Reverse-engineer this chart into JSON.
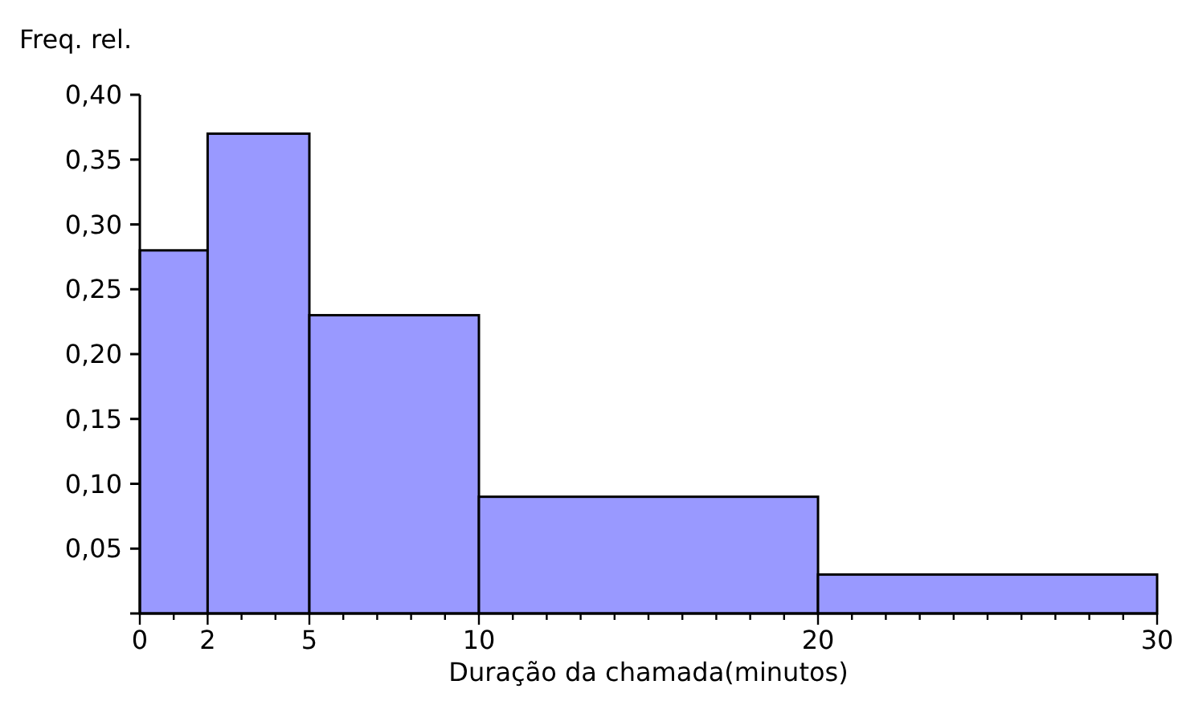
{
  "chart_data": {
    "type": "histogram",
    "xlabel": "Duração da chamada(minutos)",
    "ylabel": "Freq. rel.",
    "bins": [
      0,
      2,
      5,
      10,
      20,
      30
    ],
    "values": [
      0.28,
      0.37,
      0.23,
      0.09,
      0.03
    ],
    "color": "#9999ff",
    "xlim": [
      0,
      30
    ],
    "ylim": [
      0,
      0.4
    ],
    "xticks": [
      0,
      {
        "value": 1,
        "label": null
      },
      2,
      {
        "value": 3,
        "label": null
      },
      {
        "value": 4,
        "label": null
      },
      5,
      {
        "value": 6,
        "label": null
      },
      {
        "value": 7,
        "label": null
      },
      {
        "value": 8,
        "label": null
      },
      {
        "value": 9,
        "label": null
      },
      10,
      {
        "value": 11,
        "label": null
      },
      {
        "value": 12,
        "label": null
      },
      {
        "value": 13,
        "label": null
      },
      {
        "value": 14,
        "label": null
      },
      {
        "value": 15,
        "label": null
      },
      {
        "value": 16,
        "label": null
      },
      {
        "value": 17,
        "label": null
      },
      {
        "value": 18,
        "label": null
      },
      {
        "value": 19,
        "label": null
      },
      20,
      {
        "value": 21,
        "label": null
      },
      {
        "value": 22,
        "label": null
      },
      {
        "value": 23,
        "label": null
      },
      {
        "value": 24,
        "label": null
      },
      {
        "value": 25,
        "label": null
      },
      {
        "value": 26,
        "label": null
      },
      {
        "value": 27,
        "label": null
      },
      {
        "value": 28,
        "label": null
      },
      {
        "value": 29,
        "label": null
      },
      30
    ],
    "yticks": [
      {
        "value": 0.05,
        "label": "0,05"
      },
      {
        "value": 0.1,
        "label": "0,10"
      },
      {
        "value": 0.15,
        "label": "0,15"
      },
      {
        "value": 0.2,
        "label": "0,20"
      },
      {
        "value": 0.25,
        "label": "0,25"
      },
      {
        "value": 0.3,
        "label": "0,30"
      },
      {
        "value": 0.35,
        "label": "0,35"
      },
      {
        "value": 0.4,
        "label": "0,40"
      }
    ],
    "grid": false
  }
}
